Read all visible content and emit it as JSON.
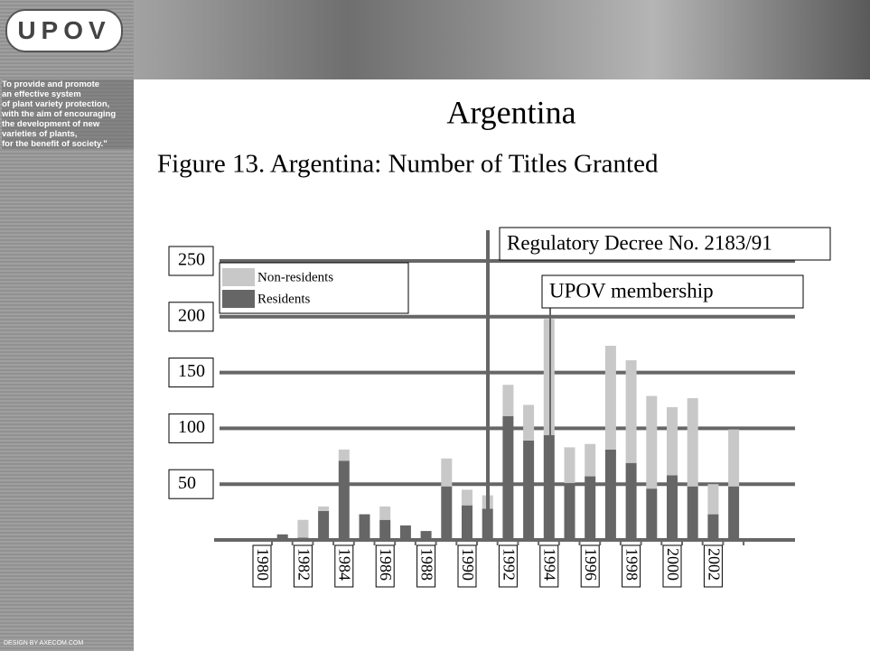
{
  "header": {
    "logo": "UPOV",
    "tagline": [
      "To provide and promote",
      "an effective system",
      "of plant variety protection,",
      "with the aim of encouraging",
      "the development of new",
      "varieties of plants,",
      "for the benefit of society.\""
    ],
    "credit": "DESIGN BY AXECOM.COM"
  },
  "chart_data": {
    "type": "stacked-bar",
    "title": "Argentina",
    "subtitle": "Figure 13. Argentina: Number of Titles Granted",
    "categories": [
      "1980",
      null,
      "1982",
      null,
      "1984",
      null,
      "1986",
      null,
      "1988",
      null,
      "1990",
      null,
      "1992",
      null,
      "1994",
      null,
      "1996",
      null,
      "1998",
      null,
      "2000",
      null,
      "2002",
      null
    ],
    "series": [
      {
        "name": "Residents",
        "color": "#666666",
        "values": [
          0,
          5,
          2,
          26,
          71,
          23,
          18,
          13,
          8,
          48,
          31,
          28,
          111,
          89,
          94,
          51,
          57,
          81,
          69,
          46,
          58,
          48,
          23,
          48
        ]
      },
      {
        "name": "Non-residents",
        "color": "#c8c8c8",
        "values": [
          0,
          0,
          16,
          4,
          10,
          0,
          12,
          0,
          0,
          25,
          14,
          12,
          28,
          32,
          104,
          32,
          29,
          93,
          92,
          83,
          61,
          79,
          27,
          51
        ]
      }
    ],
    "ylim": [
      0,
      250
    ],
    "yticks": [
      50,
      100,
      150,
      200,
      250
    ],
    "grid": true,
    "annotations": [
      "Regulatory Decree No. 2183/91",
      "UPOV membership"
    ]
  }
}
